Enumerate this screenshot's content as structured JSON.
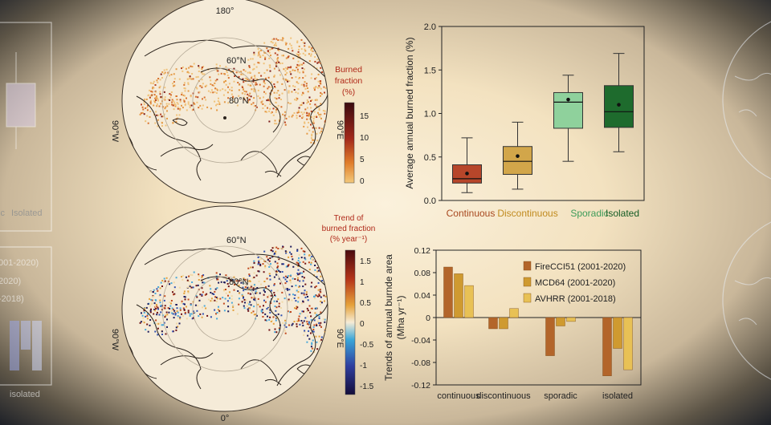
{
  "maps": {
    "top": {
      "lon_top": "180°",
      "lon_right": "90°E",
      "lon_left": "90°W",
      "lat_outer": "60°N",
      "lat_inner": "80°N",
      "colorbar_title_1": "Burned",
      "colorbar_title_2": "fraction",
      "colorbar_title_3": "(%)",
      "colorbar_ticks": [
        "15",
        "10",
        "5",
        "0"
      ]
    },
    "bottom": {
      "lon_bottom": "0°",
      "lon_right": "90°E",
      "lon_left": "90°W",
      "lat_outer": "60°N",
      "lat_inner": "80°N",
      "colorbar_title_1": "Trend of",
      "colorbar_title_2": "burned fraction",
      "colorbar_title_3": "(% year⁻¹)",
      "colorbar_ticks": [
        "1.5",
        "1",
        "0.5",
        "0",
        "-0.5",
        "-1",
        "-1.5"
      ]
    }
  },
  "ghost_panels": {
    "left_labels": [
      "dic",
      "Isolated"
    ],
    "left_legend": [
      "001-2020)",
      "2020)",
      "-2018)"
    ],
    "left_bottom_label": "isolated"
  },
  "colors": {
    "continuous": "#a8481f",
    "discontinuous": "#c08a1e",
    "sporadic": "#3f9c5a",
    "isolated": "#145c24",
    "firecci": "#b3652a",
    "mcd64": "#cf9a30",
    "avhrr": "#e8c155"
  },
  "chart_data": [
    {
      "type": "box",
      "ylabel": "Average annual burned fraction (%)",
      "ylim": [
        0,
        2.0
      ],
      "yticks": [
        "0.0",
        "0.5",
        "1.0",
        "1.5",
        "2.0"
      ],
      "categories": [
        "Continuous",
        "Discontinuous",
        "Sporadic",
        "Isolated"
      ],
      "boxes": [
        {
          "min": 0.09,
          "q1": 0.2,
          "median": 0.25,
          "q3": 0.41,
          "max": 0.72,
          "mean": 0.31
        },
        {
          "min": 0.13,
          "q1": 0.3,
          "median": 0.45,
          "q3": 0.62,
          "max": 0.9,
          "mean": 0.51
        },
        {
          "min": 0.45,
          "q1": 0.83,
          "median": 1.13,
          "q3": 1.24,
          "max": 1.44,
          "mean": 1.16
        },
        {
          "min": 0.56,
          "q1": 0.84,
          "median": 1.02,
          "q3": 1.32,
          "max": 1.69,
          "mean": 1.1
        }
      ]
    },
    {
      "type": "bar",
      "ylabel_1": "Trends of annual burnde area",
      "ylabel_2": "(Mha yr⁻¹)",
      "ylim": [
        -0.12,
        0.12
      ],
      "yticks": [
        "0.12",
        "0.08",
        "0.04",
        "0",
        "-0.04",
        "-0.08",
        "-0.12"
      ],
      "categories": [
        "continuous",
        "discontinuous",
        "sporadic",
        "isolated"
      ],
      "series": [
        {
          "name": "FireCCI51 (2001-2020)",
          "values": [
            0.09,
            -0.02,
            -0.068,
            -0.104
          ]
        },
        {
          "name": "MCD64 (2001-2020)",
          "values": [
            0.078,
            -0.02,
            -0.015,
            -0.055
          ]
        },
        {
          "name": "AVHRR (2001-2018)",
          "values": [
            0.057,
            0.016,
            -0.007,
            -0.093
          ]
        }
      ]
    }
  ]
}
